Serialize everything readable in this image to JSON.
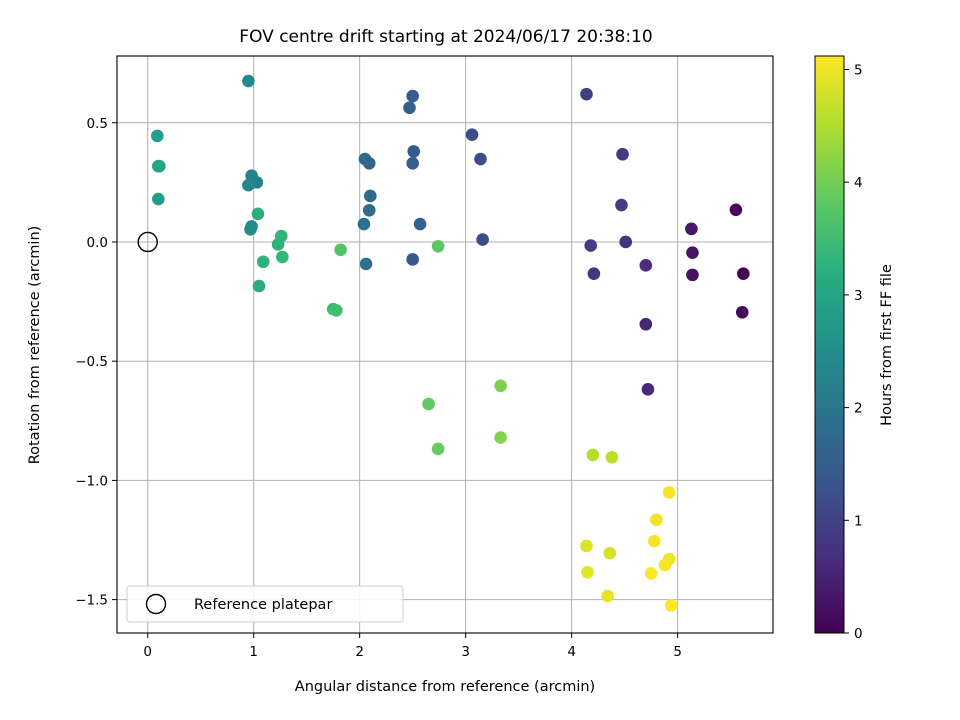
{
  "chart_data": {
    "type": "scatter",
    "title": "FOV centre drift starting at 2024/06/17 20:38:10",
    "xlabel": "Angular distance from reference (arcmin)",
    "ylabel": "Rotation from reference (arcmin)",
    "colorbar_label": "Hours from first FF file",
    "colormap": "viridis",
    "xlim": [
      -0.29,
      5.9
    ],
    "ylim": [
      -1.64,
      0.78
    ],
    "clim": [
      0,
      5.12
    ],
    "xticks": [
      0,
      1,
      2,
      3,
      4,
      5
    ],
    "xtick_labels": [
      "0",
      "1",
      "2",
      "3",
      "4",
      "5"
    ],
    "yticks": [
      0.5,
      0.0,
      -0.5,
      -1.0,
      -1.5
    ],
    "ytick_labels": [
      "0.5",
      "0.0",
      "−0.5",
      "−1.0",
      "−1.5"
    ],
    "cticks": [
      0,
      1,
      2,
      3,
      4,
      5
    ],
    "ctick_labels": [
      "0",
      "1",
      "2",
      "3",
      "4",
      "5"
    ],
    "grid": true,
    "legend": {
      "placement": "lower-left",
      "label": "Reference platepar"
    },
    "reference_point": {
      "x": 0,
      "y": 0
    },
    "points": [
      {
        "x": 0.95,
        "y": 0.675,
        "hours": 2.45
      },
      {
        "x": 0.09,
        "y": 0.445,
        "hours": 2.9
      },
      {
        "x": 0.1,
        "y": 0.318,
        "hours": 2.95
      },
      {
        "x": 0.11,
        "y": 0.318,
        "hours": 3.0
      },
      {
        "x": 0.1,
        "y": 0.18,
        "hours": 2.85
      },
      {
        "x": 0.98,
        "y": 0.278,
        "hours": 2.3
      },
      {
        "x": 1.03,
        "y": 0.25,
        "hours": 2.2
      },
      {
        "x": 0.95,
        "y": 0.238,
        "hours": 2.35
      },
      {
        "x": 1.04,
        "y": 0.118,
        "hours": 3.2
      },
      {
        "x": 0.98,
        "y": 0.065,
        "hours": 2.4
      },
      {
        "x": 0.97,
        "y": 0.053,
        "hours": 2.5
      },
      {
        "x": 1.26,
        "y": 0.025,
        "hours": 3.35
      },
      {
        "x": 1.23,
        "y": -0.01,
        "hours": 3.3
      },
      {
        "x": 1.27,
        "y": -0.063,
        "hours": 3.4
      },
      {
        "x": 1.09,
        "y": -0.083,
        "hours": 3.25
      },
      {
        "x": 1.05,
        "y": -0.185,
        "hours": 3.15
      },
      {
        "x": 1.75,
        "y": -0.282,
        "hours": 3.5
      },
      {
        "x": 1.78,
        "y": -0.287,
        "hours": 3.55
      },
      {
        "x": 1.82,
        "y": -0.033,
        "hours": 3.7
      },
      {
        "x": 2.05,
        "y": 0.348,
        "hours": 1.7
      },
      {
        "x": 2.09,
        "y": 0.33,
        "hours": 1.65
      },
      {
        "x": 2.1,
        "y": 0.193,
        "hours": 1.75
      },
      {
        "x": 2.09,
        "y": 0.133,
        "hours": 1.8
      },
      {
        "x": 2.04,
        "y": 0.075,
        "hours": 1.85
      },
      {
        "x": 2.06,
        "y": -0.092,
        "hours": 1.9
      },
      {
        "x": 2.5,
        "y": 0.612,
        "hours": 1.5
      },
      {
        "x": 2.47,
        "y": 0.563,
        "hours": 1.55
      },
      {
        "x": 2.51,
        "y": 0.38,
        "hours": 1.45
      },
      {
        "x": 2.5,
        "y": 0.33,
        "hours": 1.5
      },
      {
        "x": 2.57,
        "y": 0.075,
        "hours": 1.6
      },
      {
        "x": 2.5,
        "y": -0.073,
        "hours": 1.4
      },
      {
        "x": 2.74,
        "y": -0.018,
        "hours": 3.8
      },
      {
        "x": 2.65,
        "y": -0.68,
        "hours": 3.85
      },
      {
        "x": 2.74,
        "y": -0.868,
        "hours": 3.9
      },
      {
        "x": 3.06,
        "y": 0.45,
        "hours": 1.15
      },
      {
        "x": 3.14,
        "y": 0.348,
        "hours": 1.2
      },
      {
        "x": 3.16,
        "y": 0.01,
        "hours": 1.25
      },
      {
        "x": 3.33,
        "y": -0.603,
        "hours": 4.1
      },
      {
        "x": 3.33,
        "y": -0.82,
        "hours": 4.15
      },
      {
        "x": 4.14,
        "y": 0.62,
        "hours": 0.95
      },
      {
        "x": 4.48,
        "y": 0.368,
        "hours": 0.85
      },
      {
        "x": 4.47,
        "y": 0.155,
        "hours": 0.9
      },
      {
        "x": 4.18,
        "y": -0.015,
        "hours": 0.95
      },
      {
        "x": 4.51,
        "y": 0.0,
        "hours": 0.75
      },
      {
        "x": 4.21,
        "y": -0.133,
        "hours": 0.8
      },
      {
        "x": 4.7,
        "y": -0.098,
        "hours": 0.65
      },
      {
        "x": 4.7,
        "y": -0.345,
        "hours": 0.55
      },
      {
        "x": 4.72,
        "y": -0.618,
        "hours": 0.6
      },
      {
        "x": 5.13,
        "y": 0.055,
        "hours": 0.35
      },
      {
        "x": 5.14,
        "y": -0.045,
        "hours": 0.3
      },
      {
        "x": 5.14,
        "y": -0.138,
        "hours": 0.25
      },
      {
        "x": 5.55,
        "y": 0.135,
        "hours": 0.1
      },
      {
        "x": 5.62,
        "y": -0.133,
        "hours": 0.05
      },
      {
        "x": 5.61,
        "y": -0.295,
        "hours": 0.1
      },
      {
        "x": 4.2,
        "y": -0.893,
        "hours": 4.55
      },
      {
        "x": 4.38,
        "y": -0.903,
        "hours": 4.6
      },
      {
        "x": 4.14,
        "y": -1.275,
        "hours": 4.85
      },
      {
        "x": 4.36,
        "y": -1.305,
        "hours": 4.8
      },
      {
        "x": 4.15,
        "y": -1.385,
        "hours": 4.9
      },
      {
        "x": 4.34,
        "y": -1.485,
        "hours": 4.95
      },
      {
        "x": 4.92,
        "y": -1.05,
        "hours": 5.05
      },
      {
        "x": 4.8,
        "y": -1.165,
        "hours": 5.0
      },
      {
        "x": 4.78,
        "y": -1.255,
        "hours": 5.05
      },
      {
        "x": 4.92,
        "y": -1.33,
        "hours": 5.0
      },
      {
        "x": 4.88,
        "y": -1.355,
        "hours": 5.05
      },
      {
        "x": 4.75,
        "y": -1.39,
        "hours": 5.1
      },
      {
        "x": 4.94,
        "y": -1.525,
        "hours": 5.1
      }
    ]
  }
}
